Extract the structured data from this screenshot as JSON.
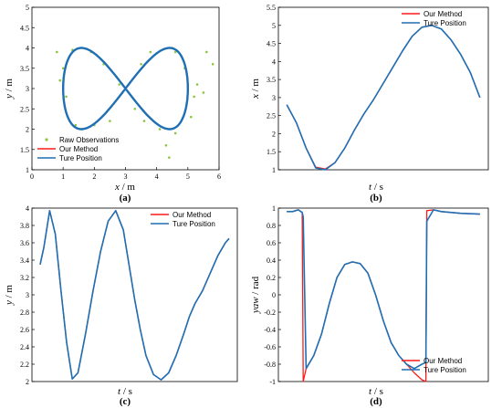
{
  "colors": {
    "our_method": "#ff1a1a",
    "true_position": "#1f6fb4",
    "raw": "#8cc63f"
  },
  "chart_data": [
    {
      "id": "a",
      "type": "line",
      "caption": "(a)",
      "xlabel": "x",
      "xunit": " / m",
      "ylabel": "y",
      "yunit": " / m",
      "xlim": [
        0,
        6
      ],
      "ylim": [
        1,
        5
      ],
      "xticks": [
        "0",
        "1",
        "2",
        "3",
        "4",
        "5",
        "6"
      ],
      "yticks": [
        "1",
        "1.5",
        "2",
        "2.5",
        "3",
        "3.5",
        "4",
        "4.5",
        "5"
      ],
      "legend": {
        "position": "bottom-left",
        "entries": [
          "Raw Observations",
          "Our Method",
          "Ture Position"
        ]
      },
      "series": [
        {
          "name": "Raw Observations",
          "style": "scatter",
          "points": [
            [
              0.8,
              3.9
            ],
            [
              0.9,
              3.2
            ],
            [
              1.3,
              3.95
            ],
            [
              1.9,
              3.9
            ],
            [
              2.3,
              3.6
            ],
            [
              2.7,
              3.3
            ],
            [
              2.5,
              2.2
            ],
            [
              1.6,
              2.0
            ],
            [
              3.5,
              3.6
            ],
            [
              3.8,
              3.9
            ],
            [
              4.6,
              3.9
            ],
            [
              5.6,
              3.9
            ],
            [
              5.8,
              3.6
            ],
            [
              5.5,
              2.9
            ],
            [
              5.2,
              2.8
            ],
            [
              4.9,
              3.5
            ],
            [
              4.3,
              1.6
            ],
            [
              4.4,
              1.3
            ],
            [
              4.6,
              1.9
            ],
            [
              4.1,
              2.0
            ],
            [
              3.3,
              2.5
            ],
            [
              3.6,
              2.2
            ],
            [
              1.1,
              2.8
            ],
            [
              1.0,
              3.5
            ],
            [
              2.0,
              2.1
            ],
            [
              1.4,
              2.1
            ],
            [
              4.5,
              4.0
            ],
            [
              5.1,
              2.3
            ],
            [
              5.3,
              3.1
            ],
            [
              2.8,
              3.1
            ]
          ]
        },
        {
          "name": "Our Method",
          "style": "lemniscate",
          "center": [
            3.0,
            3.0
          ],
          "half_width": 2.0,
          "half_height": 1.0
        },
        {
          "name": "Ture Position",
          "style": "lemniscate",
          "center": [
            3.0,
            3.0
          ],
          "half_width": 2.0,
          "half_height": 1.0
        }
      ]
    },
    {
      "id": "b",
      "type": "line",
      "caption": "(b)",
      "xlabel": "t",
      "xunit": " / s",
      "ylabel": "x",
      "yunit": " / m",
      "ylim": [
        1,
        5.5
      ],
      "yticks": [
        "1",
        "1.5",
        "2",
        "2.5",
        "3",
        "3.5",
        "4",
        "4.5",
        "5",
        "5.5"
      ],
      "legend": {
        "position": "top-right",
        "entries": [
          "Our Method",
          "Ture Position"
        ]
      },
      "t": [
        0,
        0.05,
        0.1,
        0.15,
        0.2,
        0.25,
        0.3,
        0.35,
        0.4,
        0.45,
        0.5,
        0.55,
        0.6,
        0.65,
        0.7,
        0.75,
        0.8,
        0.85,
        0.9,
        0.95,
        1.0
      ],
      "series": [
        {
          "name": "Our Method",
          "values": [
            2.8,
            2.3,
            1.6,
            1.07,
            1.02,
            1.2,
            1.6,
            2.1,
            2.55,
            2.95,
            3.4,
            3.85,
            4.3,
            4.7,
            4.95,
            5.0,
            4.9,
            4.6,
            4.2,
            3.7,
            3.0
          ]
        },
        {
          "name": "Ture Position",
          "values": [
            2.8,
            2.3,
            1.6,
            1.05,
            1.0,
            1.2,
            1.6,
            2.1,
            2.55,
            2.95,
            3.4,
            3.85,
            4.3,
            4.7,
            4.95,
            5.0,
            4.9,
            4.6,
            4.2,
            3.7,
            3.0
          ]
        }
      ]
    },
    {
      "id": "c",
      "type": "line",
      "caption": "(c)",
      "xlabel": "t",
      "xunit": " / s",
      "ylabel": "y",
      "yunit": " / m",
      "ylim": [
        2,
        4
      ],
      "yticks": [
        "2",
        "2.2",
        "2.4",
        "2.6",
        "2.8",
        "3",
        "3.2",
        "3.4",
        "3.6",
        "3.8",
        "4"
      ],
      "legend": {
        "position": "top-right",
        "entries": [
          "Our Method",
          "Ture Position"
        ]
      },
      "t": [
        0,
        0.02,
        0.05,
        0.08,
        0.11,
        0.14,
        0.17,
        0.2,
        0.24,
        0.28,
        0.32,
        0.36,
        0.4,
        0.44,
        0.47,
        0.5,
        0.53,
        0.56,
        0.6,
        0.64,
        0.68,
        0.72,
        0.76,
        0.79,
        0.82,
        0.86,
        0.9,
        0.94,
        0.98,
        1.0
      ],
      "series": [
        {
          "name": "Our Method",
          "values": [
            3.35,
            3.55,
            3.97,
            3.7,
            3.05,
            2.45,
            2.03,
            2.1,
            2.55,
            3.05,
            3.5,
            3.85,
            3.97,
            3.75,
            3.35,
            2.95,
            2.6,
            2.3,
            2.08,
            2.02,
            2.1,
            2.3,
            2.55,
            2.75,
            2.9,
            3.05,
            3.25,
            3.45,
            3.6,
            3.65
          ]
        },
        {
          "name": "Ture Position",
          "values": [
            3.35,
            3.55,
            3.97,
            3.7,
            3.05,
            2.45,
            2.03,
            2.1,
            2.55,
            3.05,
            3.5,
            3.85,
            3.97,
            3.75,
            3.35,
            2.95,
            2.6,
            2.3,
            2.08,
            2.02,
            2.1,
            2.3,
            2.55,
            2.75,
            2.9,
            3.05,
            3.25,
            3.45,
            3.6,
            3.65
          ]
        }
      ]
    },
    {
      "id": "d",
      "type": "line",
      "caption": "(d)",
      "xlabel": "t",
      "xunit": " / s",
      "ylabel": "yaw",
      "yunit": " / rad",
      "ylim": [
        -1,
        1
      ],
      "yticks": [
        "-1",
        "-0.8",
        "-0.6",
        "-0.4",
        "-0.2",
        "0",
        "0.2",
        "0.4",
        "0.6",
        "0.8",
        "1"
      ],
      "legend": {
        "position": "bottom-right",
        "entries": [
          "Our Method",
          "Ture Position"
        ]
      },
      "t": [
        0,
        0.03,
        0.06,
        0.08,
        0.085,
        0.1,
        0.14,
        0.18,
        0.22,
        0.26,
        0.3,
        0.34,
        0.38,
        0.42,
        0.46,
        0.5,
        0.54,
        0.58,
        0.62,
        0.66,
        0.7,
        0.72,
        0.725,
        0.76,
        0.8,
        0.9,
        1.0
      ],
      "series": [
        {
          "name": "Our Method",
          "values": [
            0.96,
            0.96,
            0.98,
            0.95,
            -1.0,
            -0.85,
            -0.7,
            -0.45,
            -0.1,
            0.2,
            0.35,
            0.38,
            0.36,
            0.25,
            0.0,
            -0.3,
            -0.55,
            -0.7,
            -0.8,
            -0.9,
            -0.98,
            -1.0,
            0.97,
            0.98,
            0.96,
            0.94,
            0.93
          ]
        },
        {
          "name": "Ture Position",
          "values": [
            0.96,
            0.96,
            0.98,
            0.95,
            0.9,
            -0.85,
            -0.7,
            -0.45,
            -0.1,
            0.2,
            0.35,
            0.38,
            0.36,
            0.25,
            0.0,
            -0.3,
            -0.55,
            -0.7,
            -0.8,
            -0.85,
            -0.8,
            -0.78,
            0.85,
            0.98,
            0.96,
            0.94,
            0.93
          ]
        }
      ]
    }
  ]
}
